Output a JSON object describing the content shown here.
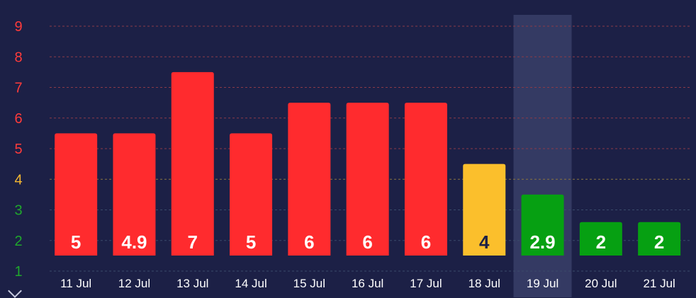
{
  "chart_data": {
    "type": "bar",
    "categories": [
      "11 Jul",
      "12 Jul",
      "13 Jul",
      "14 Jul",
      "15 Jul",
      "16 Jul",
      "17 Jul",
      "18 Jul",
      "19 Jul",
      "20 Jul",
      "21 Jul"
    ],
    "values": [
      5,
      4.9,
      7,
      5,
      6,
      6,
      6,
      4,
      2.9,
      2,
      2
    ],
    "bar_heights": [
      5.5,
      5.5,
      7.5,
      5.5,
      6.5,
      6.5,
      6.5,
      4.5,
      3.5,
      2.6,
      2.6
    ],
    "bar_colors": [
      "#ff2b2e",
      "#ff2b2e",
      "#ff2b2e",
      "#ff2b2e",
      "#ff2b2e",
      "#ff2b2e",
      "#ff2b2e",
      "#fbbf2c",
      "#06a012",
      "#06a012",
      "#06a012"
    ],
    "label_colors": [
      "#ffffff",
      "#ffffff",
      "#ffffff",
      "#ffffff",
      "#ffffff",
      "#ffffff",
      "#ffffff",
      "#1c2046",
      "#ffffff",
      "#ffffff",
      "#ffffff"
    ],
    "yticks": [
      1,
      2,
      3,
      4,
      5,
      6,
      7,
      8,
      9
    ],
    "ytick_colors": [
      "#1fa82c",
      "#1fa82c",
      "#1fa82c",
      "#f5b731",
      "#ff3b3b",
      "#ff3b3b",
      "#ff3b3b",
      "#ff3b3b",
      "#ff3b3b"
    ],
    "ylim": [
      1,
      9
    ],
    "highlighted_category": "19 Jul",
    "grid": true,
    "title": "",
    "xlabel": "",
    "ylabel": ""
  },
  "colors": {
    "background": "#1c2046",
    "grid_red": "#8a3a48",
    "grid_yellow": "#8a7540",
    "grid_green": "#3a4a6a",
    "highlight": "#343a63"
  },
  "icons": {
    "scroll": "chevron-down-icon"
  }
}
